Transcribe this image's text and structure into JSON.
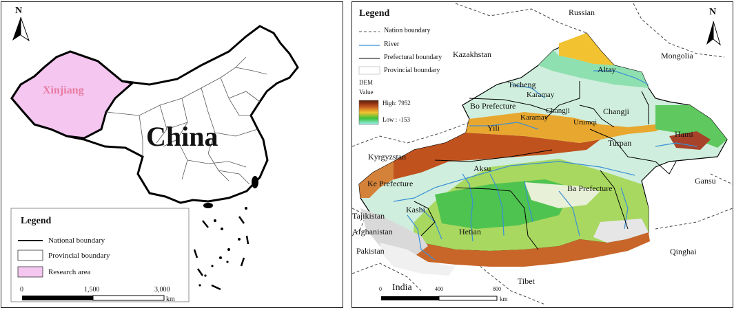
{
  "left_map": {
    "north": "N",
    "country_label": "China",
    "region_label": "Xinjiang",
    "legend": {
      "title": "Legend",
      "items": [
        "National boundary",
        "Provincial boundary",
        "Research area"
      ]
    },
    "scale": {
      "ticks": [
        "0",
        "1,500",
        "3,000"
      ],
      "unit": "km"
    },
    "colors": {
      "research_area": "#f4c6f0",
      "region_label": "#e87aa0",
      "boundary": "#000000"
    }
  },
  "right_map": {
    "north": "N",
    "legend": {
      "title": "Legend",
      "items": [
        "Nation boundary",
        "River",
        "Prefectural boundary",
        "Provincial boundary"
      ],
      "dem_title": "DEM",
      "dem_value": "Value",
      "dem_high": "High: 7952",
      "dem_low": "Low : -153"
    },
    "scale": {
      "ticks": [
        "0",
        "400",
        "800"
      ],
      "unit": "km"
    },
    "neighbors": [
      "Russian",
      "Kazakhstan",
      "Mongolia",
      "Kyrgyzstan",
      "Gansu",
      "Tajikistan",
      "Afghanistan",
      "Pakistan",
      "India",
      "Tibet",
      "Qinghai"
    ],
    "prefectures": [
      "Altay",
      "Tacheng",
      "Karamay",
      "Bo Prefecture",
      "Changji",
      "Changji",
      "Karamay",
      "Urumqi",
      "Yili",
      "Hami",
      "Turpan",
      "Aksu",
      "Ba Prefecture",
      "Ke Prefecture",
      "Kashi",
      "Hetian"
    ],
    "colors": {
      "river": "#3a8fd6",
      "dem_high": "#7a2a12",
      "dem_low": "#9af0f0"
    }
  }
}
